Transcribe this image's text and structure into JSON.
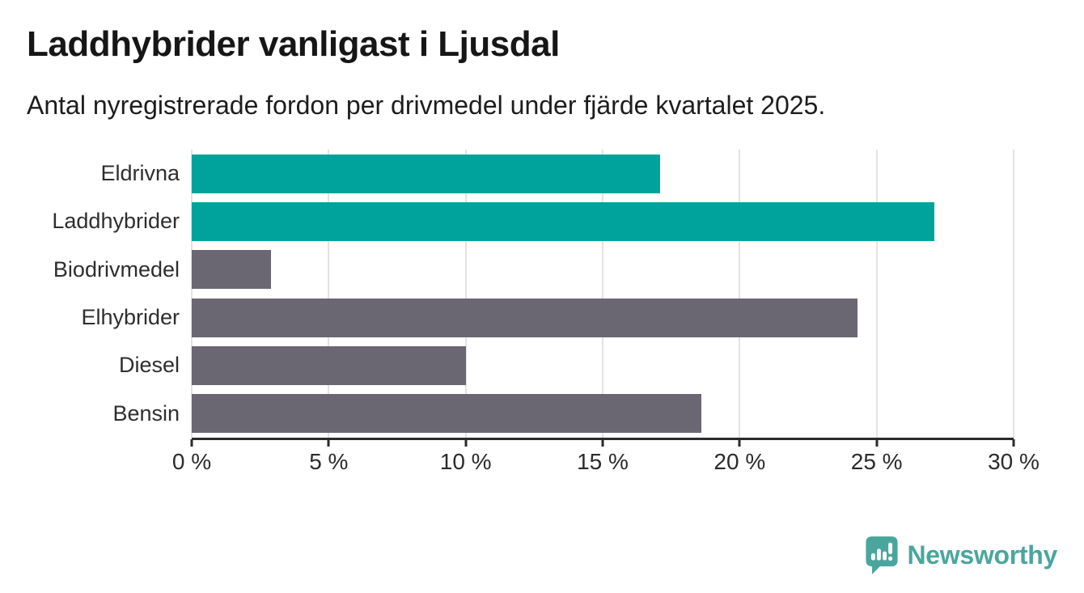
{
  "header": {
    "title": "Laddhybrider vanligast i Ljusdal",
    "subtitle": "Antal nyregistrerade fordon per drivmedel under fjärde kvartalet 2025."
  },
  "chart_data": {
    "type": "bar",
    "orientation": "horizontal",
    "title": "Laddhybrider vanligast i Ljusdal",
    "subtitle": "Antal nyregistrerade fordon per drivmedel under fjärde kvartalet 2025.",
    "categories": [
      "Eldrivna",
      "Laddhybrider",
      "Biodrivmedel",
      "Elhybrider",
      "Diesel",
      "Bensin"
    ],
    "values": [
      17.1,
      27.1,
      2.9,
      24.3,
      10.0,
      18.6
    ],
    "unit": "%",
    "bar_colors": [
      "#00a39b",
      "#00a39b",
      "#6b6772",
      "#6b6772",
      "#6b6772",
      "#6b6772"
    ],
    "xlim": [
      0,
      30
    ],
    "x_ticks": [
      0,
      5,
      10,
      15,
      20,
      25,
      30
    ],
    "x_tick_labels": [
      "0 %",
      "5 %",
      "10 %",
      "15 %",
      "20 %",
      "25 %",
      "30 %"
    ],
    "xlabel": "",
    "ylabel": "",
    "grid": "vertical-only",
    "legend": false
  },
  "colors": {
    "highlight": "#00a39b",
    "default_bar": "#6b6772",
    "grid": "#e3e3e3",
    "axis": "#2b2b2b",
    "label_text": "#2e2e2e"
  },
  "branding": {
    "logo_text": "Newsworthy",
    "logo_color": "#4aa69d",
    "logo_icon": "speech-bubble-bar-chart-exclamation"
  }
}
